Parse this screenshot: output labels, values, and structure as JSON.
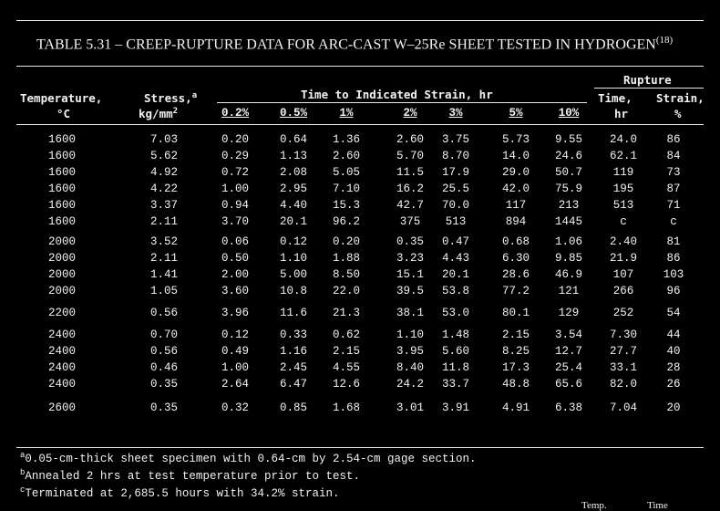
{
  "title": {
    "text": "TABLE 5.31 – CREEP-RUPTURE DATA FOR ARC-CAST W–25Re SHEET TESTED IN HYDROGEN",
    "ref": "(18)"
  },
  "headers": {
    "temperature": "Temperature,",
    "temperature_unit": "°C",
    "stress": "Stress,",
    "stress_mark": "a",
    "stress_unit": "kg/mm",
    "stress_exp": "2",
    "time_group": "Time to Indicated Strain, hr",
    "strain_cols": [
      "0.2%",
      "0.5%",
      "1%",
      "2%",
      "3%",
      "5%",
      "10%"
    ],
    "rupture_group": "Rupture",
    "rupture_time": "Time,",
    "rupture_time_unit": "hr",
    "rupture_strain": "Strain,",
    "rupture_strain_unit": "%"
  },
  "rows": [
    [
      "1600",
      "7.03",
      "0.20",
      "0.64",
      "1.36",
      "2.60",
      "3.75",
      "5.73",
      "9.55",
      "24.0",
      "86"
    ],
    [
      "1600",
      "5.62",
      "0.29",
      "1.13",
      "2.60",
      "5.70",
      "8.70",
      "14.0",
      "24.6",
      "62.1",
      "84"
    ],
    [
      "1600",
      "4.92",
      "0.72",
      "2.08",
      "5.05",
      "11.5",
      "17.9",
      "29.0",
      "50.7",
      "119",
      "73"
    ],
    [
      "1600",
      "4.22",
      "1.00",
      "2.95",
      "7.10",
      "16.2",
      "25.5",
      "42.0",
      "75.9",
      "195",
      "87"
    ],
    [
      "1600",
      "3.37",
      "0.94",
      "4.40",
      "15.3",
      "42.7",
      "70.0",
      "117",
      "213",
      "513",
      "71"
    ],
    [
      "1600",
      "2.11",
      "3.70",
      "20.1",
      "96.2",
      "375",
      "513",
      "894",
      "1445",
      "c",
      "c"
    ],
    [
      "2000",
      "3.52",
      "0.06",
      "0.12",
      "0.20",
      "0.35",
      "0.47",
      "0.68",
      "1.06",
      "2.40",
      "81"
    ],
    [
      "2000",
      "2.11",
      "0.50",
      "1.10",
      "1.88",
      "3.23",
      "4.43",
      "6.30",
      "9.85",
      "21.9",
      "86"
    ],
    [
      "2000",
      "1.41",
      "2.00",
      "5.00",
      "8.50",
      "15.1",
      "20.1",
      "28.6",
      "46.9",
      "107",
      "103"
    ],
    [
      "2000",
      "1.05",
      "3.60",
      "10.8",
      "22.0",
      "39.5",
      "53.8",
      "77.2",
      "121",
      "266",
      "96"
    ],
    [
      "2200",
      "0.56",
      "3.96",
      "11.6",
      "21.3",
      "38.1",
      "53.0",
      "80.1",
      "129",
      "252",
      "54"
    ],
    [
      "2400",
      "0.70",
      "0.12",
      "0.33",
      "0.62",
      "1.10",
      "1.48",
      "2.15",
      "3.54",
      "7.30",
      "44"
    ],
    [
      "2400",
      "0.56",
      "0.49",
      "1.16",
      "2.15",
      "3.95",
      "5.60",
      "8.25",
      "12.7",
      "27.7",
      "40"
    ],
    [
      "2400",
      "0.46",
      "1.00",
      "2.45",
      "4.55",
      "8.40",
      "11.8",
      "17.3",
      "25.4",
      "33.1",
      "28"
    ],
    [
      "2400",
      "0.35",
      "2.64",
      "6.47",
      "12.6",
      "24.2",
      "33.7",
      "48.8",
      "65.6",
      "82.0",
      "26"
    ],
    [
      "2600",
      "0.35",
      "0.32",
      "0.85",
      "1.68",
      "3.01",
      "3.91",
      "4.91",
      "6.38",
      "7.04",
      "20"
    ]
  ],
  "footnotes": [
    {
      "mark": "a",
      "text": "0.05-cm-thick sheet specimen with 0.64-cm by 2.54-cm gage section."
    },
    {
      "mark": "b",
      "text": "Annealed 2 hrs at test temperature prior to test."
    },
    {
      "mark": "c",
      "text": "Terminated at 2,685.5 hours with 34.2% strain."
    }
  ],
  "cutoff": {
    "temp": "Temp.",
    "time": "Time"
  }
}
